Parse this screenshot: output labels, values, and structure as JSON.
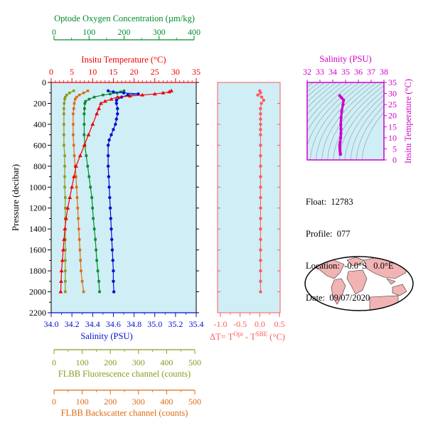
{
  "colors": {
    "oxygen": "#008c2a",
    "temperature": "#f00000",
    "salinity": "#0010d0",
    "fluorescence": "#8c9a20",
    "backscatter": "#e06a10",
    "delta_t": "#ff5a5a",
    "ts_axis": "#d000c8",
    "plot_bg": "#cfeef6",
    "land": "#f2b3b3"
  },
  "float_info": {
    "float": "Float:  12783",
    "profile": "Profile:  077",
    "location": "Location:  -0.0°S   0.0°E",
    "date": "Date:  09/07/2020"
  },
  "chart_data": [
    {
      "id": "profile-panel",
      "type": "line",
      "ylabel": "Pressure (decibar)",
      "y_ticks": [
        0,
        200,
        400,
        600,
        800,
        1000,
        1200,
        1400,
        1600,
        1800,
        2000,
        2200
      ],
      "ylim": [
        2200,
        0
      ],
      "axes": {
        "oxygen": {
          "label": "Optode Oxygen Concentration (µm/kg)",
          "range": [
            0,
            400
          ],
          "ticks": [
            "0",
            "100",
            "200",
            "300",
            "400"
          ]
        },
        "temperature": {
          "label": "Insitu Temperature (°C)",
          "range": [
            0,
            35
          ],
          "ticks": [
            "0",
            "5",
            "10",
            "15",
            "20",
            "25",
            "30",
            "35"
          ]
        },
        "salinity": {
          "label": "Salinity (PSU)",
          "range": [
            34.0,
            35.4
          ],
          "ticks": [
            "34.0",
            "34.2",
            "34.4",
            "34.6",
            "34.8",
            "35.0",
            "35.2",
            "35.4"
          ]
        },
        "fluorescence": {
          "label": "FLBB Fluorescence channel (counts)",
          "range": [
            0,
            500
          ],
          "ticks": [
            "0",
            "100",
            "200",
            "300",
            "400",
            "500"
          ]
        },
        "backscatter": {
          "label": "FLBB Backscatter channel (counts)",
          "range": [
            0,
            500
          ],
          "ticks": [
            "0",
            "100",
            "200",
            "300",
            "400",
            "500"
          ]
        }
      },
      "series": [
        {
          "name": "Insitu Temperature",
          "axis": "temperature",
          "marker": "triangle",
          "points": [
            [
              29,
              80
            ],
            [
              28.5,
              90
            ],
            [
              27,
              100
            ],
            [
              25,
              110
            ],
            [
              22,
              120
            ],
            [
              19,
              130
            ],
            [
              16,
              140
            ],
            [
              14.5,
              160
            ],
            [
              13,
              180
            ],
            [
              12,
              200
            ],
            [
              11.5,
              250
            ],
            [
              11,
              300
            ],
            [
              10,
              400
            ],
            [
              9,
              500
            ],
            [
              8,
              600
            ],
            [
              7,
              700
            ],
            [
              6,
              800
            ],
            [
              5.5,
              900
            ],
            [
              5,
              1000
            ],
            [
              4.5,
              1100
            ],
            [
              4,
              1200
            ],
            [
              3.6,
              1300
            ],
            [
              3.3,
              1400
            ],
            [
              3.1,
              1500
            ],
            [
              2.9,
              1600
            ],
            [
              2.7,
              1700
            ],
            [
              2.5,
              1800
            ],
            [
              2.4,
              1900
            ],
            [
              2.3,
              2000
            ]
          ]
        },
        {
          "name": "Salinity",
          "axis": "salinity",
          "marker": "circle",
          "points": [
            [
              34.55,
              80
            ],
            [
              34.6,
              90
            ],
            [
              34.7,
              100
            ],
            [
              34.84,
              110
            ],
            [
              34.74,
              120
            ],
            [
              34.68,
              140
            ],
            [
              34.63,
              170
            ],
            [
              34.63,
              200
            ],
            [
              34.64,
              250
            ],
            [
              34.64,
              300
            ],
            [
              34.63,
              350
            ],
            [
              34.62,
              400
            ],
            [
              34.6,
              450
            ],
            [
              34.58,
              500
            ],
            [
              34.56,
              550
            ],
            [
              34.55,
              600
            ],
            [
              34.55,
              700
            ],
            [
              34.55,
              800
            ],
            [
              34.555,
              900
            ],
            [
              34.56,
              1000
            ],
            [
              34.565,
              1100
            ],
            [
              34.57,
              1200
            ],
            [
              34.575,
              1300
            ],
            [
              34.58,
              1400
            ],
            [
              34.585,
              1500
            ],
            [
              34.59,
              1600
            ],
            [
              34.595,
              1700
            ],
            [
              34.6,
              1800
            ],
            [
              34.6,
              1900
            ],
            [
              34.605,
              2000
            ]
          ]
        },
        {
          "name": "Optode Oxygen",
          "axis": "oxygen",
          "marker": "square",
          "points": [
            [
              200,
              80
            ],
            [
              190,
              90
            ],
            [
              180,
              100
            ],
            [
              160,
              110
            ],
            [
              140,
              120
            ],
            [
              115,
              140
            ],
            [
              100,
              160
            ],
            [
              90,
              180
            ],
            [
              88,
              200
            ],
            [
              87,
              250
            ],
            [
              86,
              300
            ],
            [
              86,
              400
            ],
            [
              86,
              500
            ],
            [
              88,
              600
            ],
            [
              92,
              700
            ],
            [
              96,
              800
            ],
            [
              100,
              900
            ],
            [
              104,
              1000
            ],
            [
              108,
              1100
            ],
            [
              110,
              1200
            ],
            [
              112,
              1300
            ],
            [
              115,
              1400
            ],
            [
              118,
              1500
            ],
            [
              120,
              1600
            ],
            [
              122,
              1700
            ],
            [
              125,
              1800
            ],
            [
              128,
              1900
            ],
            [
              130,
              2000
            ]
          ]
        },
        {
          "name": "FLBB Fluorescence",
          "axis": "fluorescence",
          "marker": "square",
          "points": [
            [
              70,
              80
            ],
            [
              55,
              100
            ],
            [
              45,
              120
            ],
            [
              40,
              140
            ],
            [
              38,
              160
            ],
            [
              36,
              200
            ],
            [
              35,
              250
            ],
            [
              35,
              300
            ],
            [
              35,
              400
            ],
            [
              35,
              500
            ],
            [
              35,
              600
            ],
            [
              38,
              700
            ],
            [
              38,
              800
            ],
            [
              38,
              900
            ],
            [
              38,
              1000
            ],
            [
              40,
              1100
            ],
            [
              40,
              1200
            ],
            [
              40,
              1300
            ],
            [
              40,
              1400
            ],
            [
              40,
              1500
            ],
            [
              40,
              1600
            ],
            [
              40,
              1700
            ],
            [
              40,
              1800
            ],
            [
              40,
              1900
            ],
            [
              40,
              2000
            ]
          ]
        },
        {
          "name": "FLBB Backscatter",
          "axis": "backscatter",
          "marker": "square",
          "points": [
            [
              120,
              80
            ],
            [
              105,
              100
            ],
            [
              90,
              120
            ],
            [
              80,
              140
            ],
            [
              75,
              160
            ],
            [
              72,
              200
            ],
            [
              70,
              250
            ],
            [
              68,
              300
            ],
            [
              68,
              400
            ],
            [
              68,
              500
            ],
            [
              70,
              600
            ],
            [
              72,
              700
            ],
            [
              75,
              800
            ],
            [
              78,
              900
            ],
            [
              80,
              1000
            ],
            [
              82,
              1100
            ],
            [
              84,
              1200
            ],
            [
              86,
              1300
            ],
            [
              88,
              1400
            ],
            [
              90,
              1500
            ],
            [
              92,
              1600
            ],
            [
              94,
              1700
            ],
            [
              96,
              1800
            ],
            [
              100,
              1900
            ],
            [
              105,
              2000
            ]
          ]
        }
      ]
    },
    {
      "id": "delta-t-panel",
      "type": "line",
      "xlabel": "ΔT= T^Opt - T^SBE (°C)",
      "x_ticks": [
        "-1.0",
        "-0.5",
        "0.0",
        "0.5"
      ],
      "xlim": [
        -1.0,
        0.5
      ],
      "ylim": [
        2200,
        0
      ],
      "series": [
        {
          "name": "ΔT",
          "points": [
            [
              0.0,
              80
            ],
            [
              0.02,
              100
            ],
            [
              -0.05,
              120
            ],
            [
              0.05,
              140
            ],
            [
              0.1,
              170
            ],
            [
              0.04,
              200
            ],
            [
              0.02,
              250
            ],
            [
              0.02,
              300
            ],
            [
              0.02,
              350
            ],
            [
              0.02,
              400
            ],
            [
              0.02,
              450
            ],
            [
              0.02,
              500
            ],
            [
              0.02,
              600
            ],
            [
              0.02,
              700
            ],
            [
              0.02,
              800
            ],
            [
              0.02,
              900
            ],
            [
              0.02,
              1000
            ],
            [
              0.02,
              1100
            ],
            [
              0.02,
              1200
            ],
            [
              0.02,
              1300
            ],
            [
              0.02,
              1400
            ],
            [
              0.02,
              1500
            ],
            [
              0.02,
              1600
            ],
            [
              0.02,
              1700
            ],
            [
              0.02,
              1800
            ],
            [
              0.02,
              1900
            ],
            [
              0.02,
              2000
            ]
          ]
        }
      ]
    },
    {
      "id": "ts-panel",
      "type": "scatter",
      "xlabel": "Salinity (PSU)",
      "ylabel": "Insitu Temperature (°C)",
      "xlim": [
        32,
        38
      ],
      "ylim": [
        0,
        35
      ],
      "x_ticks": [
        "32",
        "33",
        "34",
        "35",
        "36",
        "37",
        "38"
      ],
      "y_ticks": [
        "0",
        "5",
        "10",
        "15",
        "20",
        "25",
        "30",
        "35"
      ],
      "series": [
        {
          "name": "T-S",
          "points": [
            [
              34.55,
              29
            ],
            [
              34.7,
              28
            ],
            [
              34.85,
              27
            ],
            [
              34.8,
              25
            ],
            [
              34.7,
              22
            ],
            [
              34.65,
              19
            ],
            [
              34.63,
              16
            ],
            [
              34.64,
              14
            ],
            [
              34.64,
              12
            ],
            [
              34.62,
              10
            ],
            [
              34.58,
              8
            ],
            [
              34.55,
              7
            ],
            [
              34.55,
              6
            ],
            [
              34.56,
              5
            ],
            [
              34.57,
              4
            ],
            [
              34.59,
              3
            ],
            [
              34.6,
              2.5
            ]
          ]
        }
      ]
    }
  ]
}
